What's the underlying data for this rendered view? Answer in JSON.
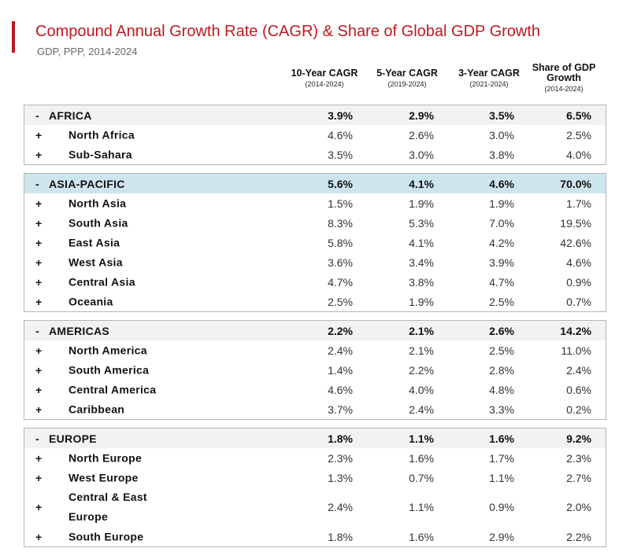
{
  "header": {
    "title": "Compound Annual Growth Rate (CAGR) & Share of Global GDP Growth",
    "subtitle": "GDP, PPP, 2014-2024"
  },
  "columns": [
    {
      "main": "10-Year CAGR",
      "sub": "(2014-2024)"
    },
    {
      "main": "5-Year CAGR",
      "sub": "(2019-2024)"
    },
    {
      "main": "3-Year CAGR",
      "sub": "(2021-2024)"
    },
    {
      "main": "Share of GDP Growth",
      "sub": "(2014-2024)"
    }
  ],
  "chart_data": {
    "type": "table",
    "title": "Compound Annual Growth Rate (CAGR) & Share of Global GDP Growth",
    "subtitle": "GDP, PPP, 2014-2024",
    "columns": [
      "10-Year CAGR (2014-2024)",
      "5-Year CAGR (2019-2024)",
      "3-Year CAGR (2021-2024)",
      "Share of GDP Growth (2014-2024)"
    ],
    "regions": [
      {
        "sign": "-",
        "name": "AFRICA",
        "values": [
          "3.9%",
          "2.9%",
          "3.5%",
          "6.5%"
        ],
        "highlight": false,
        "children": [
          {
            "sign": "+",
            "name": "North Africa",
            "values": [
              "4.6%",
              "2.6%",
              "3.0%",
              "2.5%"
            ]
          },
          {
            "sign": "+",
            "name": "Sub-Sahara",
            "values": [
              "3.5%",
              "3.0%",
              "3.8%",
              "4.0%"
            ]
          }
        ]
      },
      {
        "sign": "-",
        "name": "ASIA-PACIFIC",
        "values": [
          "5.6%",
          "4.1%",
          "4.6%",
          "70.0%"
        ],
        "highlight": true,
        "children": [
          {
            "sign": "+",
            "name": "North Asia",
            "values": [
              "1.5%",
              "1.9%",
              "1.9%",
              "1.7%"
            ]
          },
          {
            "sign": "+",
            "name": "South Asia",
            "values": [
              "8.3%",
              "5.3%",
              "7.0%",
              "19.5%"
            ]
          },
          {
            "sign": "+",
            "name": "East Asia",
            "values": [
              "5.8%",
              "4.1%",
              "4.2%",
              "42.6%"
            ]
          },
          {
            "sign": "+",
            "name": "West Asia",
            "values": [
              "3.6%",
              "3.4%",
              "3.9%",
              "4.6%"
            ]
          },
          {
            "sign": "+",
            "name": "Central Asia",
            "values": [
              "4.7%",
              "3.8%",
              "4.7%",
              "0.9%"
            ]
          },
          {
            "sign": "+",
            "name": "Oceania",
            "values": [
              "2.5%",
              "1.9%",
              "2.5%",
              "0.7%"
            ]
          }
        ]
      },
      {
        "sign": "-",
        "name": "AMERICAS",
        "values": [
          "2.2%",
          "2.1%",
          "2.6%",
          "14.2%"
        ],
        "highlight": false,
        "children": [
          {
            "sign": "+",
            "name": "North America",
            "values": [
              "2.4%",
              "2.1%",
              "2.5%",
              "11.0%"
            ]
          },
          {
            "sign": "+",
            "name": "South America",
            "values": [
              "1.4%",
              "2.2%",
              "2.8%",
              "2.4%"
            ]
          },
          {
            "sign": "+",
            "name": "Central America",
            "values": [
              "4.6%",
              "4.0%",
              "4.8%",
              "0.6%"
            ]
          },
          {
            "sign": "+",
            "name": "Caribbean",
            "values": [
              "3.7%",
              "2.4%",
              "3.3%",
              "0.2%"
            ]
          }
        ]
      },
      {
        "sign": "-",
        "name": "EUROPE",
        "values": [
          "1.8%",
          "1.1%",
          "1.6%",
          "9.2%"
        ],
        "highlight": false,
        "children": [
          {
            "sign": "+",
            "name": "North Europe",
            "values": [
              "2.3%",
              "1.6%",
              "1.7%",
              "2.3%"
            ]
          },
          {
            "sign": "+",
            "name": "West Europe",
            "values": [
              "1.3%",
              "0.7%",
              "1.1%",
              "2.7%"
            ]
          },
          {
            "sign": "+",
            "name": "Central & East Europe",
            "values": [
              "2.4%",
              "1.1%",
              "0.9%",
              "2.0%"
            ],
            "tall": true
          },
          {
            "sign": "+",
            "name": "South Europe",
            "values": [
              "1.8%",
              "1.6%",
              "2.9%",
              "2.2%"
            ]
          }
        ]
      }
    ]
  }
}
